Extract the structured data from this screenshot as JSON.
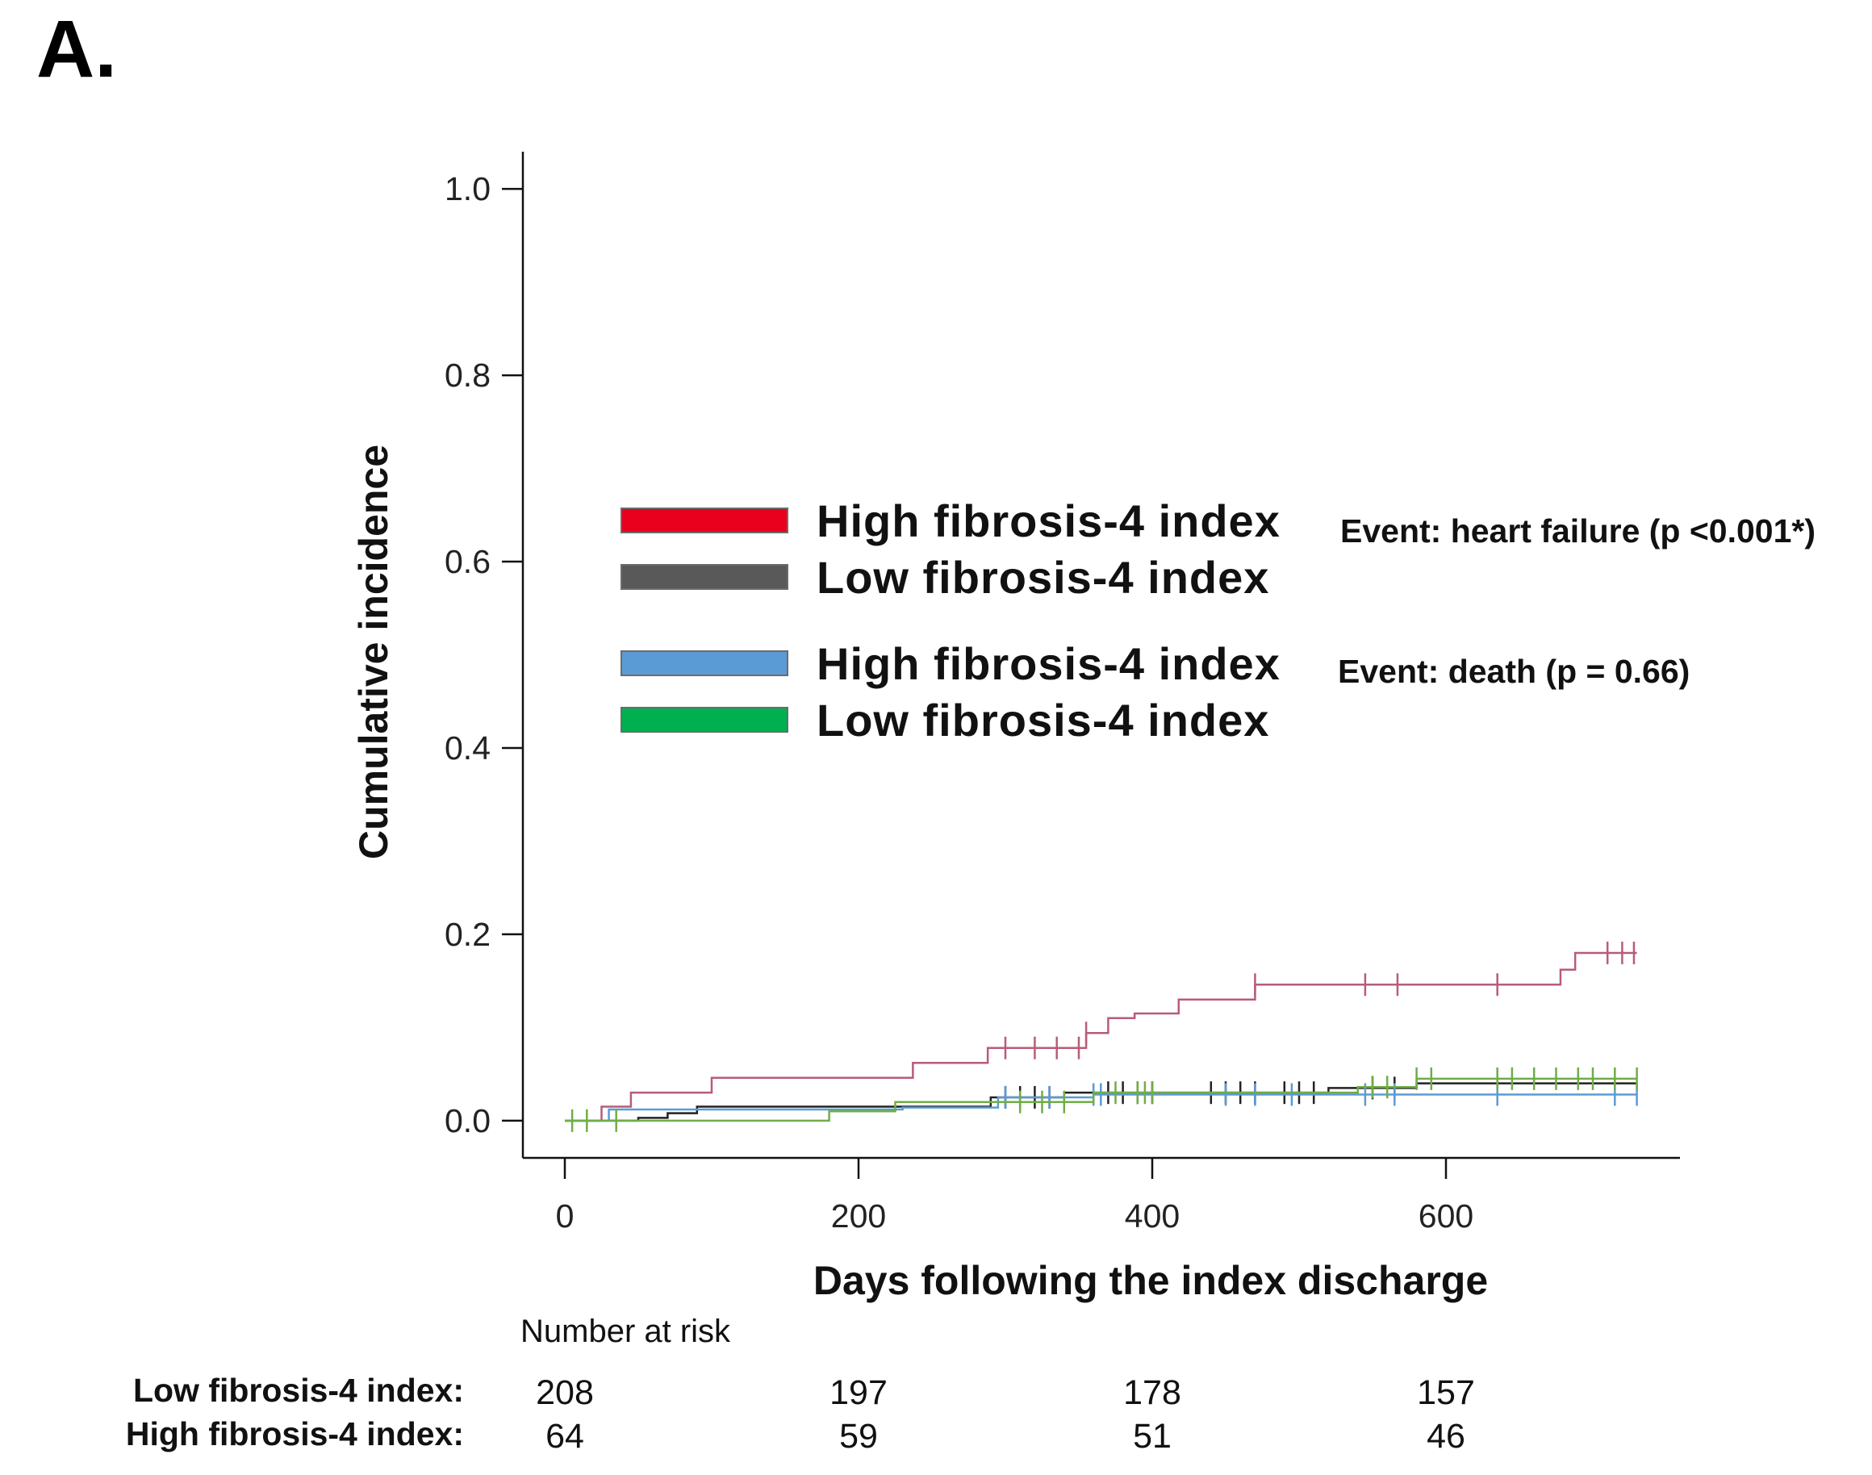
{
  "panel_label": "A.",
  "chart_data": {
    "type": "line",
    "subtype": "cumulative-incidence-step",
    "xlabel": "Days following the index discharge",
    "ylabel": "Cumulative incidence",
    "xlim": [
      -40,
      760
    ],
    "ylim": [
      -0.04,
      1.04
    ],
    "x_ticks": [
      0,
      200,
      400,
      600
    ],
    "y_ticks": [
      0.0,
      0.2,
      0.4,
      0.6,
      0.8,
      1.0
    ],
    "y_tick_labels": [
      "0.0",
      "0.2",
      "0.4",
      "0.6",
      "0.8",
      "1.0"
    ],
    "grid": false,
    "legend_position": "center-left",
    "legend_groups": [
      {
        "event_label": "Event: heart failure (p <0.001*)",
        "entries": [
          {
            "label": "High fibrosis-4 index",
            "color": "#e8001c"
          },
          {
            "label": "Low fibrosis-4 index",
            "color": "#595959"
          }
        ]
      },
      {
        "event_label": "Event: death (p = 0.66)",
        "entries": [
          {
            "label": "High fibrosis-4 index",
            "color": "#5b9bd5"
          },
          {
            "label": "Low fibrosis-4 index",
            "color": "#00b050"
          }
        ]
      }
    ],
    "series": [
      {
        "color": "#b85c78",
        "x": [
          0,
          20,
          25,
          45,
          100,
          237,
          288,
          355,
          370,
          388,
          418,
          470,
          678,
          688,
          730
        ],
        "y": [
          0.0,
          0.0,
          0.015,
          0.03,
          0.046,
          0.062,
          0.078,
          0.094,
          0.11,
          0.115,
          0.13,
          0.146,
          0.162,
          0.18,
          0.18
        ],
        "censor_x": [
          300,
          320,
          335,
          350,
          355,
          470,
          545,
          567,
          635,
          710,
          720,
          728
        ]
      },
      {
        "color": "#222222",
        "x": [
          0,
          50,
          70,
          90,
          290,
          340,
          520,
          580,
          730
        ],
        "y": [
          0.0,
          0.003,
          0.008,
          0.015,
          0.025,
          0.03,
          0.035,
          0.04,
          0.04
        ],
        "censor_x": [
          300,
          310,
          320,
          330,
          370,
          380,
          390,
          400,
          440,
          450,
          460,
          470,
          490,
          500,
          510,
          550,
          565
        ]
      },
      {
        "color": "#5b9bd5",
        "x": [
          0,
          30,
          230,
          295,
          360,
          460,
          520,
          590,
          730
        ],
        "y": [
          0.0,
          0.012,
          0.014,
          0.025,
          0.028,
          0.028,
          0.028,
          0.028,
          0.028
        ],
        "censor_x": [
          300,
          330,
          360,
          365,
          450,
          470,
          495,
          545,
          565,
          635,
          715,
          730
        ]
      },
      {
        "color": "#70ad47",
        "x": [
          0,
          180,
          225,
          360,
          480,
          540,
          580,
          730
        ],
        "y": [
          0.0,
          0.01,
          0.02,
          0.03,
          0.03,
          0.036,
          0.045,
          0.045
        ],
        "censor_x": [
          5,
          15,
          35,
          310,
          325,
          340,
          375,
          390,
          395,
          400,
          550,
          560,
          580,
          590,
          635,
          645,
          660,
          675,
          690,
          700,
          715,
          730
        ]
      }
    ],
    "risk_table": {
      "title": "Number at risk",
      "rows": [
        {
          "label": "Low fibrosis-4 index:",
          "values": [
            208,
            197,
            178,
            157
          ]
        },
        {
          "label": "High fibrosis-4 index:",
          "values": [
            64,
            59,
            51,
            46
          ]
        }
      ]
    }
  }
}
